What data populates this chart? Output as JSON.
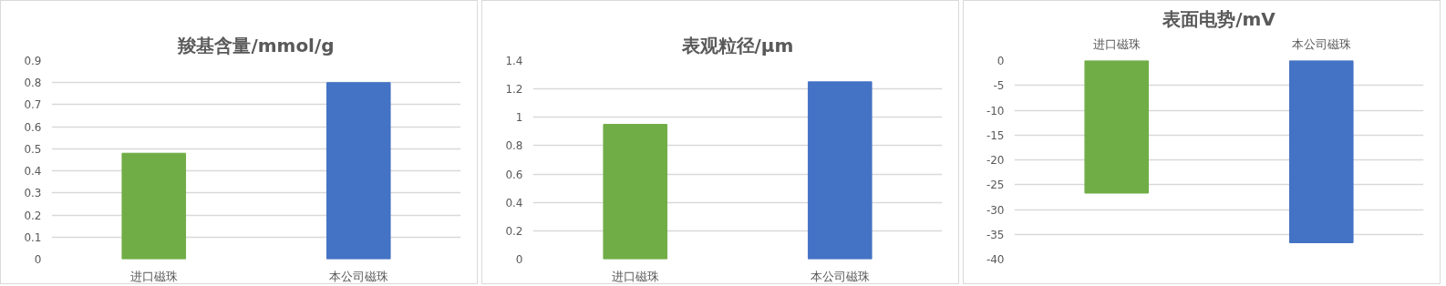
{
  "chart_data": [
    {
      "type": "bar",
      "title": "羧基含量/mmol/g",
      "categories": [
        "进口磁珠",
        "本公司磁珠"
      ],
      "values": [
        0.48,
        0.8
      ],
      "colors": [
        "#70ad47",
        "#4472c4"
      ],
      "ylim": [
        0,
        0.9
      ],
      "yticks": [
        0,
        0.1,
        0.2,
        0.3,
        0.4,
        0.5,
        0.6,
        0.7,
        0.8,
        0.9
      ],
      "grid": "y"
    },
    {
      "type": "bar",
      "title": "表观粒径/μm",
      "categories": [
        "进口磁珠",
        "本公司磁珠"
      ],
      "values": [
        0.95,
        1.25
      ],
      "colors": [
        "#70ad47",
        "#4472c4"
      ],
      "ylim": [
        0,
        1.4
      ],
      "yticks": [
        0,
        0.2,
        0.4,
        0.6,
        0.8,
        1,
        1.2,
        1.4
      ],
      "grid": "y"
    },
    {
      "type": "bar",
      "title": "表面电势/mV",
      "categories": [
        "进口磁珠",
        "本公司磁珠"
      ],
      "values": [
        -26.7,
        -36.7
      ],
      "colors": [
        "#70ad47",
        "#4472c4"
      ],
      "ylim": [
        -40,
        0
      ],
      "yticks": [
        0,
        -5,
        -10,
        -15,
        -20,
        -25,
        -30,
        -35,
        -40
      ],
      "grid": "y"
    }
  ]
}
